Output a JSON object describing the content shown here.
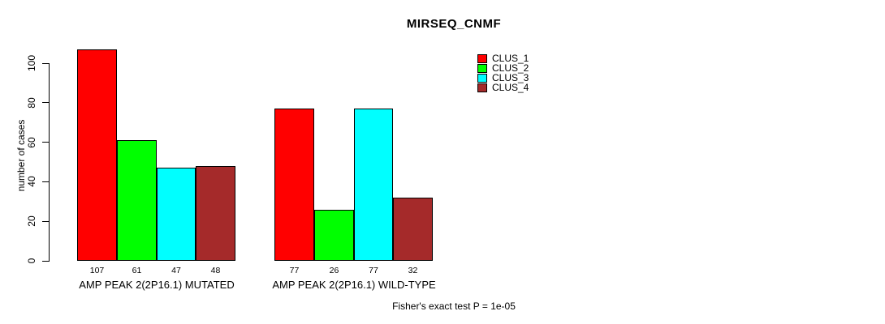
{
  "title": "MIRSEQ_CNMF",
  "footer": "Fisher's exact test P = 1e-05",
  "chart_data": {
    "type": "bar",
    "title": "MIRSEQ_CNMF",
    "ylabel": "number of cases",
    "xlabel": "",
    "ylim": [
      0,
      100
    ],
    "yticks": [
      0,
      20,
      40,
      60,
      80,
      100
    ],
    "grid": "off",
    "legend_position": "top-right",
    "categories": [
      "AMP PEAK 2(2P16.1) MUTATED",
      "AMP PEAK 2(2P16.1) WILD-TYPE"
    ],
    "series": [
      {
        "name": "CLUS_1",
        "color": "#FF0000",
        "values": [
          107,
          77
        ]
      },
      {
        "name": "CLUS_2",
        "color": "#00FF00",
        "values": [
          61,
          26
        ]
      },
      {
        "name": "CLUS_3",
        "color": "#00FFFF",
        "values": [
          47,
          77
        ]
      },
      {
        "name": "CLUS_4",
        "color": "#A52A2A",
        "values": [
          48,
          32
        ]
      }
    ],
    "bar_labels": [
      [
        "107",
        "61",
        "47",
        "48"
      ],
      [
        "77",
        "26",
        "77",
        "32"
      ]
    ],
    "annotation": "Fisher's exact test P = 1e-05"
  }
}
